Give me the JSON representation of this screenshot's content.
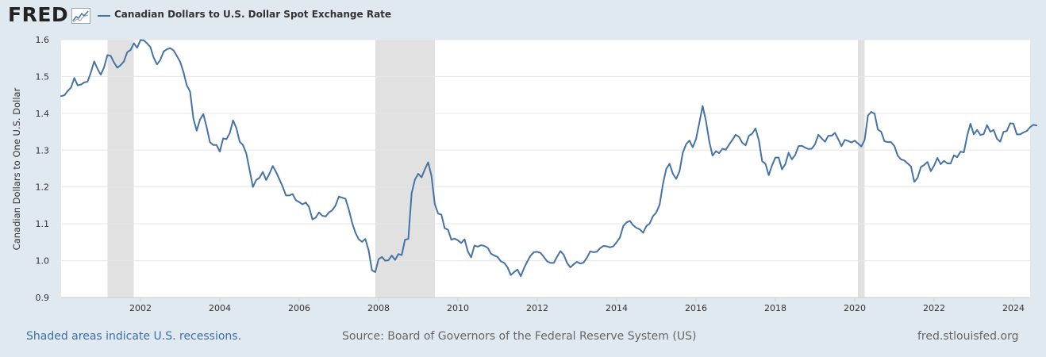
{
  "header": {
    "logo_text": "FRED",
    "logo_icon": "line-graph-icon",
    "series_title": "Canadian Dollars to U.S. Dollar Spot Exchange Rate"
  },
  "footer": {
    "recessions_note": "Shaded areas indicate U.S. recessions.",
    "source": "Source: Board of Governors of the Federal Reserve System (US)",
    "site": "fred.stlouisfed.org"
  },
  "colors": {
    "page_background": "#e1e9f0",
    "plot_background": "#ffffff",
    "series_line": "#4572a7",
    "recession_shade": "#e1e1e1",
    "link": "#3e6ea8"
  },
  "chart_data": {
    "type": "line",
    "title": "Canadian Dollars to U.S. Dollar Spot Exchange Rate",
    "ylabel": "Canadian Dollars to One U.S. Dollar",
    "xlabel": "",
    "xlim": [
      2000.0,
      2024.42
    ],
    "ylim": [
      0.9,
      1.6
    ],
    "yticks": [
      "0.9",
      "1.0",
      "1.1",
      "1.2",
      "1.3",
      "1.4",
      "1.5",
      "1.6"
    ],
    "xticks": [
      "2002",
      "2004",
      "2006",
      "2008",
      "2010",
      "2012",
      "2014",
      "2016",
      "2018",
      "2020",
      "2022",
      "2024"
    ],
    "grid": "horizontal",
    "legend": "top-left",
    "recessions": [
      {
        "start": 2001.17,
        "end": 2001.83
      },
      {
        "start": 2007.92,
        "end": 2009.42
      },
      {
        "start": 2020.08,
        "end": 2020.25
      }
    ],
    "series": [
      {
        "name": "Canadian Dollars to U.S. Dollar Spot Exchange Rate",
        "frequency": "monthly",
        "start": 2000.0,
        "values": [
          1.447,
          1.449,
          1.461,
          1.47,
          1.496,
          1.476,
          1.478,
          1.484,
          1.486,
          1.511,
          1.541,
          1.521,
          1.505,
          1.525,
          1.558,
          1.556,
          1.538,
          1.524,
          1.531,
          1.541,
          1.566,
          1.572,
          1.59,
          1.578,
          1.599,
          1.598,
          1.59,
          1.58,
          1.551,
          1.533,
          1.545,
          1.568,
          1.574,
          1.577,
          1.571,
          1.556,
          1.54,
          1.512,
          1.476,
          1.459,
          1.386,
          1.353,
          1.383,
          1.398,
          1.363,
          1.322,
          1.314,
          1.314,
          1.296,
          1.332,
          1.33,
          1.346,
          1.381,
          1.36,
          1.323,
          1.314,
          1.291,
          1.246,
          1.2,
          1.219,
          1.225,
          1.241,
          1.219,
          1.236,
          1.257,
          1.241,
          1.221,
          1.201,
          1.177,
          1.177,
          1.181,
          1.164,
          1.159,
          1.153,
          1.158,
          1.145,
          1.112,
          1.117,
          1.131,
          1.122,
          1.12,
          1.131,
          1.137,
          1.15,
          1.174,
          1.171,
          1.168,
          1.139,
          1.103,
          1.076,
          1.058,
          1.051,
          1.059,
          1.028,
          0.974,
          0.969,
          1.004,
          1.01,
          1.0,
          1.001,
          1.014,
          1.002,
          1.018,
          1.015,
          1.057,
          1.059,
          1.183,
          1.22,
          1.236,
          1.226,
          1.248,
          1.267,
          1.23,
          1.154,
          1.128,
          1.125,
          1.088,
          1.084,
          1.057,
          1.06,
          1.055,
          1.048,
          1.058,
          1.025,
          1.009,
          1.041,
          1.038,
          1.042,
          1.04,
          1.035,
          1.019,
          1.014,
          1.01,
          0.998,
          0.994,
          0.982,
          0.961,
          0.969,
          0.976,
          0.958,
          0.98,
          0.998,
          1.014,
          1.023,
          1.024,
          1.021,
          1.01,
          0.998,
          0.994,
          0.994,
          1.011,
          1.026,
          1.016,
          0.994,
          0.982,
          0.99,
          0.997,
          0.992,
          0.995,
          1.008,
          1.025,
          1.023,
          1.024,
          1.034,
          1.04,
          1.039,
          1.036,
          1.039,
          1.05,
          1.063,
          1.094,
          1.104,
          1.108,
          1.096,
          1.089,
          1.085,
          1.076,
          1.094,
          1.101,
          1.121,
          1.131,
          1.152,
          1.208,
          1.249,
          1.263,
          1.236,
          1.222,
          1.242,
          1.293,
          1.316,
          1.326,
          1.308,
          1.33,
          1.374,
          1.42,
          1.38,
          1.324,
          1.285,
          1.297,
          1.292,
          1.304,
          1.301,
          1.315,
          1.328,
          1.342,
          1.336,
          1.32,
          1.313,
          1.339,
          1.345,
          1.359,
          1.327,
          1.27,
          1.263,
          1.232,
          1.259,
          1.28,
          1.28,
          1.248,
          1.262,
          1.293,
          1.275,
          1.287,
          1.311,
          1.312,
          1.307,
          1.303,
          1.304,
          1.316,
          1.342,
          1.332,
          1.323,
          1.339,
          1.339,
          1.347,
          1.33,
          1.311,
          1.328,
          1.325,
          1.321,
          1.326,
          1.318,
          1.31,
          1.328,
          1.394,
          1.404,
          1.399,
          1.356,
          1.35,
          1.324,
          1.322,
          1.322,
          1.311,
          1.285,
          1.275,
          1.272,
          1.264,
          1.256,
          1.214,
          1.225,
          1.254,
          1.26,
          1.268,
          1.243,
          1.258,
          1.279,
          1.262,
          1.271,
          1.264,
          1.264,
          1.286,
          1.281,
          1.296,
          1.294,
          1.339,
          1.372,
          1.343,
          1.355,
          1.341,
          1.344,
          1.368,
          1.35,
          1.355,
          1.331,
          1.323,
          1.35,
          1.352,
          1.373,
          1.372,
          1.343,
          1.343,
          1.348,
          1.352,
          1.362,
          1.369,
          1.367
        ]
      }
    ]
  }
}
